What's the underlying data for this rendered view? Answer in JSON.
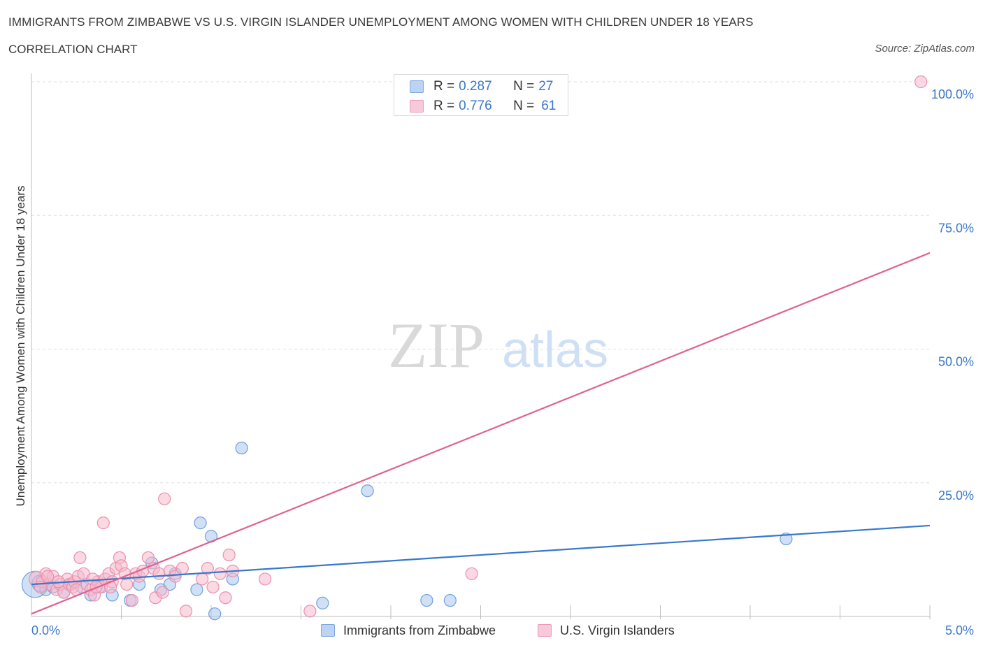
{
  "title": "IMMIGRANTS FROM ZIMBABWE VS U.S. VIRGIN ISLANDER UNEMPLOYMENT AMONG WOMEN WITH CHILDREN UNDER 18 YEARS",
  "subtitle": "CORRELATION CHART",
  "source": "Source: ZipAtlas.com",
  "watermark": {
    "zip": "ZIP",
    "atlas": "atlas"
  },
  "legend": {
    "series1": {
      "r_label": "R = ",
      "r_value": "0.287",
      "n_label": "N = ",
      "n_value": "27"
    },
    "series2": {
      "r_label": "R = ",
      "r_value": "0.776",
      "n_label": "N = ",
      "n_value": "61"
    }
  },
  "colors": {
    "blue_fill": "#a9c8f0",
    "blue_stroke": "#6f9fde",
    "blue_line": "#3878cc",
    "pink_fill": "#f6b9cc",
    "pink_stroke": "#ec8fae",
    "pink_line": "#e0628f",
    "axis_text": "#3b78c9",
    "grid": "#dddddd"
  },
  "chart_data": {
    "type": "scatter",
    "title": "IMMIGRANTS FROM ZIMBABWE VS U.S. VIRGIN ISLANDER UNEMPLOYMENT AMONG WOMEN WITH CHILDREN UNDER 18 YEARS",
    "xlabel": "",
    "ylabel": "Unemployment Among Women with Children Under 18 years",
    "xlim": [
      0,
      5
    ],
    "ylim": [
      0,
      100
    ],
    "x_tick_labels": [
      "0.0%",
      "5.0%"
    ],
    "y_tick_labels": [
      "100.0%",
      "75.0%",
      "50.0%",
      "25.0%"
    ],
    "y_ticks": [
      100,
      75,
      50,
      25
    ],
    "x_minor_ticks": [
      0.5,
      1.0,
      1.5,
      2.0,
      2.5,
      3.0,
      3.5,
      4.0,
      4.5,
      5.0
    ],
    "series": [
      {
        "name": "Immigrants from Zimbabwe",
        "color": "blue",
        "R": 0.287,
        "N": 27,
        "trend": {
          "x": [
            0,
            5
          ],
          "y": [
            6.0,
            17.0
          ]
        },
        "points": [
          {
            "x": 0.02,
            "y": 6.0,
            "s": 2.2
          },
          {
            "x": 0.05,
            "y": 6.2,
            "s": 1.4
          },
          {
            "x": 0.08,
            "y": 5.0,
            "s": 1
          },
          {
            "x": 0.12,
            "y": 5.5,
            "s": 1
          },
          {
            "x": 0.18,
            "y": 4.5,
            "s": 1
          },
          {
            "x": 0.22,
            "y": 6.0,
            "s": 1
          },
          {
            "x": 0.28,
            "y": 5.5,
            "s": 1
          },
          {
            "x": 0.33,
            "y": 4.0,
            "s": 1
          },
          {
            "x": 0.38,
            "y": 5.5,
            "s": 1
          },
          {
            "x": 0.45,
            "y": 4.0,
            "s": 1
          },
          {
            "x": 0.55,
            "y": 3.0,
            "s": 1
          },
          {
            "x": 0.6,
            "y": 6.0,
            "s": 1
          },
          {
            "x": 0.67,
            "y": 10.0,
            "s": 1
          },
          {
            "x": 0.72,
            "y": 5.0,
            "s": 1
          },
          {
            "x": 0.77,
            "y": 6.0,
            "s": 1
          },
          {
            "x": 0.8,
            "y": 8.0,
            "s": 1
          },
          {
            "x": 0.92,
            "y": 5.0,
            "s": 1
          },
          {
            "x": 0.94,
            "y": 17.5,
            "s": 1
          },
          {
            "x": 1.0,
            "y": 15.0,
            "s": 1
          },
          {
            "x": 1.02,
            "y": 0.5,
            "s": 1
          },
          {
            "x": 1.12,
            "y": 7.0,
            "s": 1
          },
          {
            "x": 1.17,
            "y": 31.5,
            "s": 1
          },
          {
            "x": 1.62,
            "y": 2.5,
            "s": 1
          },
          {
            "x": 1.87,
            "y": 23.5,
            "s": 1
          },
          {
            "x": 2.2,
            "y": 3.0,
            "s": 1
          },
          {
            "x": 2.33,
            "y": 3.0,
            "s": 1
          },
          {
            "x": 4.2,
            "y": 14.5,
            "s": 1
          }
        ]
      },
      {
        "name": "U.S. Virgin Islanders",
        "color": "pink",
        "R": 0.776,
        "N": 61,
        "trend": {
          "x": [
            0,
            5
          ],
          "y": [
            0.5,
            68.0
          ]
        },
        "points": [
          {
            "x": 0.03,
            "y": 7.0,
            "s": 1.3
          },
          {
            "x": 0.06,
            "y": 6.5,
            "s": 1
          },
          {
            "x": 0.08,
            "y": 8.0,
            "s": 1
          },
          {
            "x": 0.1,
            "y": 6.0,
            "s": 1
          },
          {
            "x": 0.12,
            "y": 7.5,
            "s": 1
          },
          {
            "x": 0.14,
            "y": 5.0,
            "s": 1
          },
          {
            "x": 0.16,
            "y": 6.0,
            "s": 1
          },
          {
            "x": 0.18,
            "y": 4.5,
            "s": 1
          },
          {
            "x": 0.2,
            "y": 7.0,
            "s": 1
          },
          {
            "x": 0.21,
            "y": 6.0,
            "s": 1
          },
          {
            "x": 0.23,
            "y": 5.5,
            "s": 1
          },
          {
            "x": 0.24,
            "y": 6.5,
            "s": 1
          },
          {
            "x": 0.26,
            "y": 7.5,
            "s": 1
          },
          {
            "x": 0.27,
            "y": 11.0,
            "s": 1
          },
          {
            "x": 0.29,
            "y": 8.0,
            "s": 1
          },
          {
            "x": 0.31,
            "y": 6.0,
            "s": 1
          },
          {
            "x": 0.33,
            "y": 5.0,
            "s": 1
          },
          {
            "x": 0.35,
            "y": 4.0,
            "s": 1
          },
          {
            "x": 0.37,
            "y": 6.5,
            "s": 1
          },
          {
            "x": 0.39,
            "y": 5.5,
            "s": 1
          },
          {
            "x": 0.41,
            "y": 7.0,
            "s": 1
          },
          {
            "x": 0.4,
            "y": 17.5,
            "s": 1
          },
          {
            "x": 0.43,
            "y": 8.0,
            "s": 1
          },
          {
            "x": 0.45,
            "y": 6.5,
            "s": 1
          },
          {
            "x": 0.47,
            "y": 9.0,
            "s": 1
          },
          {
            "x": 0.49,
            "y": 11.0,
            "s": 1
          },
          {
            "x": 0.5,
            "y": 9.5,
            "s": 1
          },
          {
            "x": 0.53,
            "y": 6.0,
            "s": 1
          },
          {
            "x": 0.56,
            "y": 3.0,
            "s": 1
          },
          {
            "x": 0.58,
            "y": 8.0,
            "s": 1
          },
          {
            "x": 0.6,
            "y": 7.5,
            "s": 1
          },
          {
            "x": 0.62,
            "y": 8.5,
            "s": 1
          },
          {
            "x": 0.65,
            "y": 11.0,
            "s": 1
          },
          {
            "x": 0.68,
            "y": 9.0,
            "s": 1
          },
          {
            "x": 0.69,
            "y": 3.5,
            "s": 1
          },
          {
            "x": 0.71,
            "y": 8.0,
            "s": 1
          },
          {
            "x": 0.73,
            "y": 4.5,
            "s": 1
          },
          {
            "x": 0.74,
            "y": 22.0,
            "s": 1
          },
          {
            "x": 0.77,
            "y": 8.5,
            "s": 1
          },
          {
            "x": 0.8,
            "y": 7.5,
            "s": 1
          },
          {
            "x": 0.84,
            "y": 9.0,
            "s": 1
          },
          {
            "x": 0.86,
            "y": 1.0,
            "s": 1
          },
          {
            "x": 0.95,
            "y": 7.0,
            "s": 1
          },
          {
            "x": 0.98,
            "y": 9.0,
            "s": 1
          },
          {
            "x": 1.01,
            "y": 5.5,
            "s": 1
          },
          {
            "x": 1.05,
            "y": 8.0,
            "s": 1
          },
          {
            "x": 1.08,
            "y": 3.5,
            "s": 1
          },
          {
            "x": 1.1,
            "y": 11.5,
            "s": 1
          },
          {
            "x": 1.12,
            "y": 8.5,
            "s": 1
          },
          {
            "x": 1.3,
            "y": 7.0,
            "s": 1
          },
          {
            "x": 1.55,
            "y": 1.0,
            "s": 1
          },
          {
            "x": 2.45,
            "y": 8.0,
            "s": 1
          },
          {
            "x": 4.95,
            "y": 100.0,
            "s": 1
          },
          {
            "x": 0.05,
            "y": 5.5,
            "s": 1
          },
          {
            "x": 0.09,
            "y": 7.5,
            "s": 1
          },
          {
            "x": 0.15,
            "y": 6.5,
            "s": 1
          },
          {
            "x": 0.25,
            "y": 5.0,
            "s": 1
          },
          {
            "x": 0.34,
            "y": 7.0,
            "s": 1
          },
          {
            "x": 0.44,
            "y": 5.5,
            "s": 1
          },
          {
            "x": 0.52,
            "y": 8.0,
            "s": 1
          },
          {
            "x": 0.36,
            "y": 5.5,
            "s": 1
          }
        ]
      }
    ]
  },
  "bottom_legend": [
    "Immigrants from Zimbabwe",
    "U.S. Virgin Islanders"
  ]
}
